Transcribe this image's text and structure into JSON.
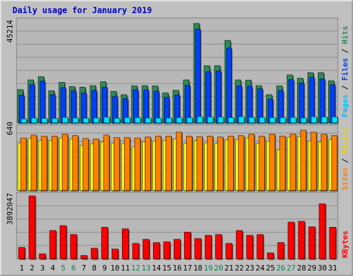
{
  "chart_data": {
    "title": "Daily usage for January 2019",
    "days": [
      "1",
      "2",
      "3",
      "4",
      "5",
      "6",
      "7",
      "8",
      "9",
      "10",
      "11",
      "12",
      "13",
      "14",
      "15",
      "16",
      "17",
      "18",
      "19",
      "20",
      "21",
      "22",
      "23",
      "24",
      "25",
      "26",
      "27",
      "28",
      "29",
      "30",
      "31"
    ],
    "weekend_days": [
      "5",
      "6",
      "12",
      "13",
      "19",
      "20",
      "26",
      "27"
    ],
    "top": {
      "type": "bar",
      "max_label": "45214",
      "ylim": [
        0,
        45214
      ],
      "legend": [
        "Pages",
        "Files",
        "Hits"
      ],
      "series": [
        {
          "name": "Hits",
          "color": "#2e8b57",
          "values": [
            15100,
            19500,
            21000,
            14600,
            18400,
            16500,
            16200,
            16900,
            18700,
            14300,
            12800,
            16800,
            16900,
            16800,
            13600,
            14800,
            19500,
            45214,
            26000,
            26000,
            37500,
            19500,
            19400,
            16900,
            12800,
            16800,
            21800,
            20300,
            22800,
            22800,
            19100
          ]
        },
        {
          "name": "Files",
          "color": "#0040ff",
          "values": [
            12600,
            17400,
            19000,
            12800,
            16000,
            14600,
            13600,
            14700,
            16200,
            12000,
            11000,
            15000,
            15000,
            14400,
            11600,
            12700,
            17100,
            42600,
            23200,
            23600,
            34000,
            16800,
            16700,
            15500,
            10900,
            14700,
            19600,
            18100,
            20700,
            20000,
            17300
          ]
        },
        {
          "name": "Pages",
          "color": "#00e0ff",
          "values": [
            1800,
            2200,
            2000,
            2000,
            2500,
            2200,
            2100,
            2200,
            2600,
            2100,
            2400,
            2400,
            2200,
            2200,
            2200,
            2400,
            2400,
            2800,
            2700,
            2600,
            2400,
            2800,
            2500,
            2500,
            2400,
            2400,
            2500,
            2200,
            2800,
            2700,
            2700
          ]
        }
      ]
    },
    "middle": {
      "type": "bar",
      "max_label": "640",
      "ylim": [
        0,
        640
      ],
      "legend": [
        "Sites",
        "Visits"
      ],
      "series": [
        {
          "name": "Visits",
          "color": "#ffff00",
          "values": [
            490,
            535,
            515,
            515,
            540,
            530,
            465,
            480,
            500,
            485,
            480,
            450,
            500,
            510,
            515,
            530,
            485,
            515,
            490,
            485,
            520,
            525,
            540,
            485,
            510,
            420,
            550,
            555,
            510,
            500,
            525
          ]
        },
        {
          "name": "Sites",
          "color": "#ff8000",
          "values": [
            540,
            570,
            560,
            560,
            580,
            565,
            535,
            530,
            570,
            545,
            545,
            540,
            550,
            560,
            560,
            600,
            560,
            555,
            560,
            550,
            560,
            565,
            580,
            560,
            580,
            560,
            580,
            620,
            600,
            580,
            565
          ]
        }
      ]
    },
    "bottom": {
      "type": "bar",
      "max_label": "3892047",
      "ylim": [
        0,
        3892047
      ],
      "legend": [
        "KBytes"
      ],
      "series": [
        {
          "name": "KBytes",
          "color": "#ff0000",
          "values": [
            700000,
            3892047,
            300000,
            1750000,
            2050000,
            1500000,
            200000,
            650000,
            1950000,
            600000,
            1850000,
            950000,
            1200000,
            1000000,
            1050000,
            1200000,
            1650000,
            1250000,
            1450000,
            1500000,
            950000,
            1750000,
            1450000,
            1500000,
            360000,
            1000000,
            2270000,
            2320000,
            1980000,
            3400000,
            1950000
          ]
        }
      ]
    }
  }
}
